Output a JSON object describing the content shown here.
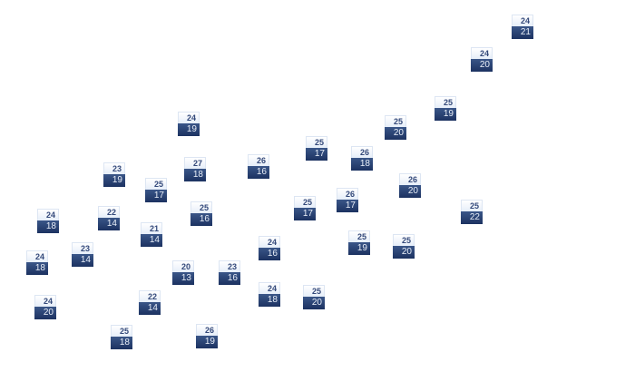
{
  "colors": {
    "high_bg": "#eef3fb",
    "high_text": "#34497a",
    "low_bg": "#243c6c",
    "low_text": "#e8eef8"
  },
  "markers": [
    {
      "high": "24",
      "low": "21"
    },
    {
      "high": "24",
      "low": "20"
    },
    {
      "high": "25",
      "low": "19"
    },
    {
      "high": "25",
      "low": "20"
    },
    {
      "high": "24",
      "low": "19"
    },
    {
      "high": "25",
      "low": "17"
    },
    {
      "high": "26",
      "low": "18"
    },
    {
      "high": "26",
      "low": "16"
    },
    {
      "high": "27",
      "low": "18"
    },
    {
      "high": "23",
      "low": "19"
    },
    {
      "high": "25",
      "low": "17"
    },
    {
      "high": "26",
      "low": "20"
    },
    {
      "high": "26",
      "low": "17"
    },
    {
      "high": "25",
      "low": "17"
    },
    {
      "high": "25",
      "low": "16"
    },
    {
      "high": "25",
      "low": "22"
    },
    {
      "high": "24",
      "low": "18"
    },
    {
      "high": "22",
      "low": "14"
    },
    {
      "high": "21",
      "low": "14"
    },
    {
      "high": "25",
      "low": "19"
    },
    {
      "high": "24",
      "low": "16"
    },
    {
      "high": "25",
      "low": "20"
    },
    {
      "high": "23",
      "low": "14"
    },
    {
      "high": "24",
      "low": "18"
    },
    {
      "high": "20",
      "low": "13"
    },
    {
      "high": "23",
      "low": "16"
    },
    {
      "high": "24",
      "low": "18"
    },
    {
      "high": "25",
      "low": "20"
    },
    {
      "high": "22",
      "low": "14"
    },
    {
      "high": "24",
      "low": "20"
    },
    {
      "high": "25",
      "low": "18"
    },
    {
      "high": "26",
      "low": "19"
    }
  ]
}
